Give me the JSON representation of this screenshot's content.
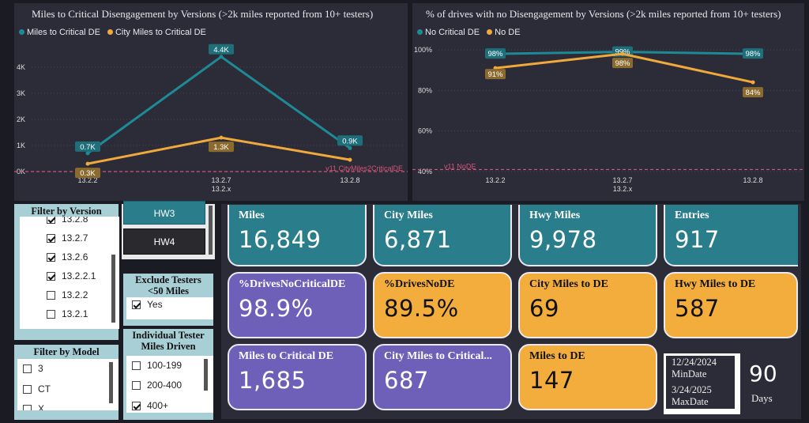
{
  "chart1": {
    "title": "Miles to Critical Disengagement by Versions (>2k miles reported from 10+ testers)",
    "legend": [
      "Miles to Critical DE",
      "City Miles to Critical DE"
    ],
    "y_ticks": [
      "4K",
      "3K",
      "2K",
      "1K",
      "0K"
    ],
    "x_ticks": [
      "13.2.2",
      "13.2.7",
      "13.2.8"
    ],
    "x_group_label": "13.2.x",
    "ref_label": "v11 CityMiles2CriticalDE",
    "labels_series1": [
      "0.7K",
      "4.4K",
      "0.9K"
    ],
    "labels_series2": [
      "0.3K",
      "1.3K",
      ""
    ]
  },
  "chart2": {
    "title": "% of drives with no Disengagement by Versions (>2k miles reported from 10+ testers)",
    "legend": [
      "No Critical DE",
      "No DE"
    ],
    "y_ticks": [
      "100%",
      "80%",
      "60%",
      "40%"
    ],
    "x_ticks": [
      "13.2.2",
      "13.2.7",
      "13.2.8"
    ],
    "x_group_label": "13.2.x",
    "ref_label": "v11 NoDE",
    "labels_series1": [
      "98%",
      "99%",
      "98%"
    ],
    "labels_series2": [
      "91%",
      "98%",
      "84%"
    ]
  },
  "chart_data": [
    {
      "type": "line",
      "title": "Miles to Critical Disengagement by Versions (>2k miles reported from 10+ testers)",
      "categories": [
        "13.2.2",
        "13.2.7",
        "13.2.8"
      ],
      "series": [
        {
          "name": "Miles to Critical DE",
          "values": [
            700,
            4400,
            900
          ],
          "color": "#1e8a96"
        },
        {
          "name": "City Miles to Critical DE",
          "values": [
            300,
            1300,
            450
          ],
          "color": "#f2a93b"
        }
      ],
      "reference_line": {
        "label": "v11 CityMiles2CriticalDE",
        "value": 0
      },
      "ylim": [
        0,
        4800
      ],
      "legend": "top-left"
    },
    {
      "type": "line",
      "title": "% of drives with no Disengagement by Versions (>2k miles reported from 10+ testers)",
      "categories": [
        "13.2.2",
        "13.2.7",
        "13.2.8"
      ],
      "series": [
        {
          "name": "No Critical DE",
          "values": [
            98,
            99,
            98
          ],
          "color": "#1e8a96"
        },
        {
          "name": "No DE",
          "values": [
            91,
            98,
            84
          ],
          "color": "#f2a93b"
        }
      ],
      "reference_line": {
        "label": "v11 NoDE",
        "value": 41
      },
      "ylim": [
        40,
        100
      ],
      "legend": "top-left"
    }
  ],
  "filters": {
    "version": {
      "title": "Filter by Version",
      "items": [
        {
          "label": "13.2.8",
          "checked": true
        },
        {
          "label": "13.2.7",
          "checked": true
        },
        {
          "label": "13.2.6",
          "checked": true
        },
        {
          "label": "13.2.2.1",
          "checked": true
        },
        {
          "label": "13.2.2",
          "checked": false
        },
        {
          "label": "13.2.1",
          "checked": false
        }
      ]
    },
    "model": {
      "title": "Filter by Model",
      "items": [
        {
          "label": "3",
          "checked": false
        },
        {
          "label": "CT",
          "checked": false
        },
        {
          "label": "X",
          "checked": false
        }
      ]
    },
    "hardware": {
      "buttons": [
        "HW3",
        "HW4"
      ]
    },
    "exclude": {
      "title": "Exclude Testers <50 Miles",
      "item": {
        "label": "Yes",
        "checked": true
      }
    },
    "individual": {
      "title": "Individual Tester Miles Driven",
      "items": [
        {
          "label": "100-199",
          "checked": false
        },
        {
          "label": "200-400",
          "checked": false
        },
        {
          "label": "400+",
          "checked": true
        }
      ]
    }
  },
  "kpis": [
    {
      "label": "Miles",
      "value": "16,849",
      "color": "teal"
    },
    {
      "label": "City Miles",
      "value": "6,871",
      "color": "teal"
    },
    {
      "label": "Hwy Miles",
      "value": "9,978",
      "color": "teal"
    },
    {
      "label": "Entries",
      "value": "917",
      "color": "teal"
    },
    {
      "label": "%DrivesNoCriticalDE",
      "value": "98.9%",
      "color": "purple"
    },
    {
      "label": "%DrivesNoDE",
      "value": "89.5%",
      "color": "orange"
    },
    {
      "label": "City Miles to DE",
      "value": "69",
      "color": "orange"
    },
    {
      "label": "Hwy Miles to DE",
      "value": "587",
      "color": "orange"
    },
    {
      "label": "Miles to Critical DE",
      "value": "1,685",
      "color": "purple"
    },
    {
      "label": "City Miles to Critical...",
      "value": "687",
      "color": "purple"
    },
    {
      "label": "Miles to DE",
      "value": "147",
      "color": "orange"
    }
  ],
  "dates": {
    "min_date": "12/24/2024",
    "min_label": "MinDate",
    "max_date": "3/24/2025",
    "max_label": "MaxDate",
    "days_value": "90",
    "days_label": "Days"
  }
}
